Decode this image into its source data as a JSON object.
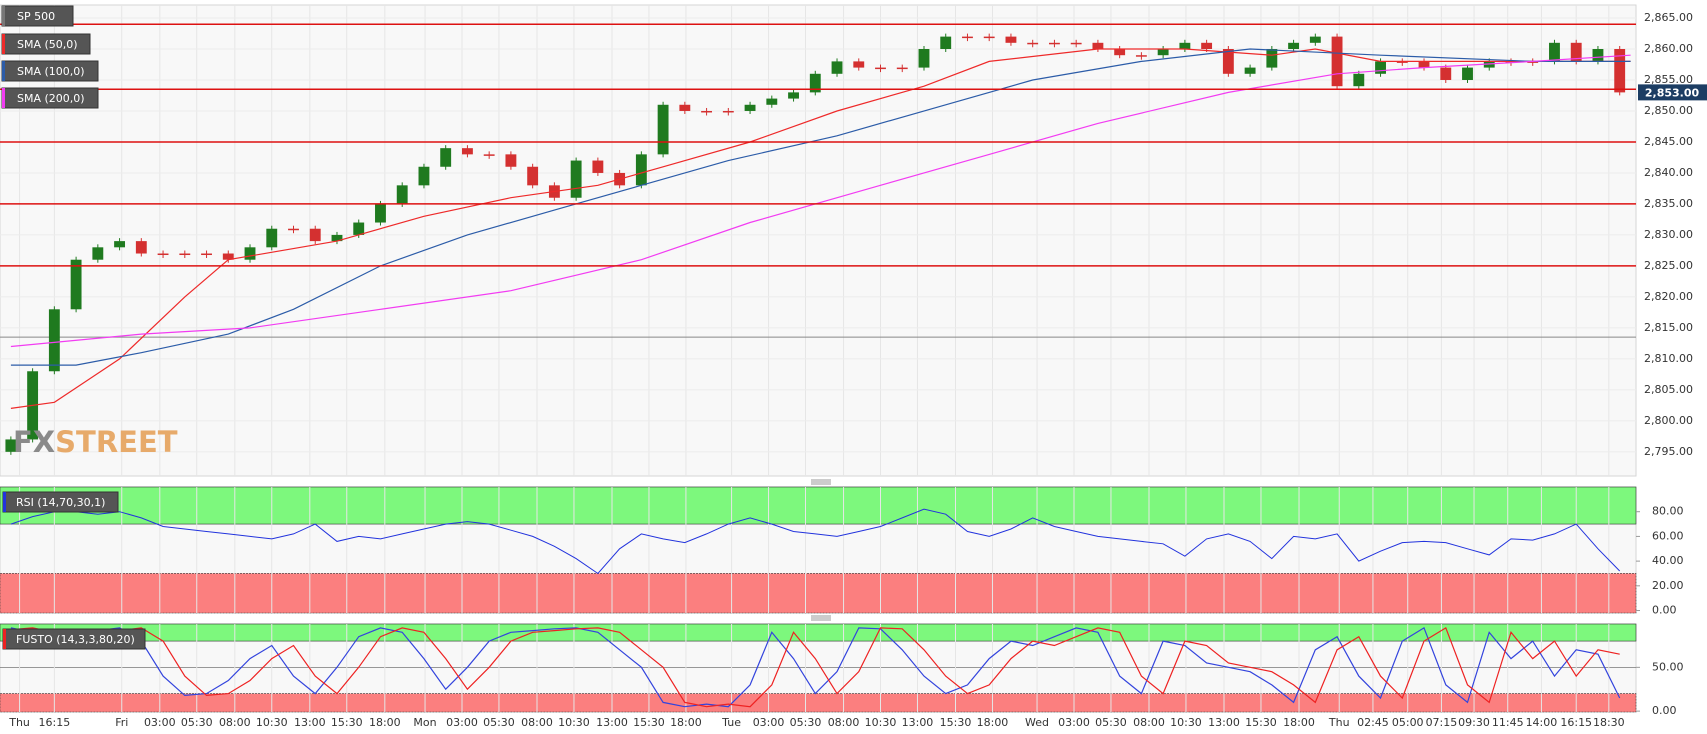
{
  "chart_data": [
    {
      "type": "candlestick",
      "title": "SP 500",
      "open": [
        2795,
        2797,
        2808,
        2818,
        2826,
        2828,
        2829,
        2827,
        2827,
        2827,
        2827,
        2826,
        2828,
        2831,
        2831,
        2829,
        2830,
        2832,
        2835,
        2838,
        2841,
        2844,
        2843,
        2843,
        2841,
        2838,
        2836,
        2842,
        2840,
        2838,
        2843,
        2851,
        2850,
        2850,
        2850,
        2851,
        2852,
        2853,
        2856,
        2858,
        2857,
        2857,
        2857,
        2860,
        2862,
        2862,
        2862,
        2861,
        2861,
        2861,
        2861,
        2860,
        2859,
        2859,
        2860,
        2861,
        2860,
        2856,
        2857,
        2860,
        2861,
        2862,
        2854,
        2856,
        2858,
        2858,
        2857,
        2855,
        2857,
        2858,
        2858,
        2858,
        2861,
        2858,
        2860
      ],
      "close": [
        2797,
        2808,
        2818,
        2826,
        2828,
        2829,
        2827,
        2827,
        2827,
        2827,
        2826,
        2828,
        2831,
        2831,
        2829,
        2830,
        2832,
        2835,
        2838,
        2841,
        2844,
        2843,
        2843,
        2841,
        2838,
        2836,
        2842,
        2840,
        2838,
        2843,
        2851,
        2850,
        2850,
        2850,
        2851,
        2852,
        2853,
        2856,
        2858,
        2857,
        2857,
        2857,
        2860,
        2862,
        2862,
        2862,
        2861,
        2861,
        2861,
        2861,
        2860,
        2859,
        2859,
        2860,
        2861,
        2860,
        2856,
        2857,
        2860,
        2861,
        2862,
        2854,
        2856,
        2858,
        2858,
        2857,
        2855,
        2857,
        2858,
        2858,
        2858,
        2861,
        2858,
        2860,
        2853
      ],
      "up_color": "#1f7a1f",
      "down_color": "#d43030",
      "series": [
        {
          "name": "SMA (50,0)",
          "color": "#ee2a2a",
          "x": [
            0,
            2,
            5,
            8,
            10,
            15,
            19,
            23,
            27,
            30,
            34,
            38,
            42,
            45,
            50,
            54,
            58,
            60,
            63,
            70,
            74.5
          ],
          "values": [
            2802,
            2803,
            2810,
            2820,
            2826,
            2829,
            2833,
            2836,
            2838,
            2841,
            2845,
            2850,
            2854,
            2858,
            2860,
            2860,
            2859,
            2860,
            2858,
            2858,
            2858
          ]
        },
        {
          "name": "SMA (100,0)",
          "color": "#2c5ca8",
          "x": [
            0,
            3,
            6,
            10,
            13,
            17,
            21,
            25,
            29,
            33,
            38,
            43,
            47,
            52,
            57,
            63,
            70,
            74.5
          ],
          "values": [
            2809,
            2809,
            2811,
            2814,
            2818,
            2825,
            2830,
            2834,
            2838,
            2842,
            2846,
            2851,
            2855,
            2858,
            2860,
            2859,
            2858,
            2858
          ]
        },
        {
          "name": "SMA (200,0)",
          "color": "#f23cf2",
          "x": [
            0,
            6,
            11,
            17,
            23,
            29,
            34,
            40,
            45,
            50,
            56,
            61,
            65,
            70,
            74.5
          ],
          "values": [
            2812,
            2814,
            2815,
            2818,
            2821,
            2826,
            2832,
            2838,
            2843,
            2848,
            2853,
            2856,
            2857,
            2858,
            2859
          ]
        }
      ],
      "horizontal_lines": {
        "color": "#dd1111",
        "values": [
          2864,
          2853.5,
          2845,
          2835,
          2825
        ]
      },
      "reference_line": 2813.5,
      "last_price": {
        "value": 2853,
        "label": "2,853.00"
      },
      "watermark": [
        "FX",
        "STREET"
      ],
      "xlim": [
        -0.5,
        74.75
      ],
      "xticks": [
        {
          "value": 0.4,
          "label": "Thu"
        },
        {
          "value": 2.0,
          "label": "16:15"
        },
        {
          "value": 5.1,
          "label": "Fri"
        },
        {
          "value": 6.85,
          "label": "03:00"
        },
        {
          "value": 8.55,
          "label": "05:30"
        },
        {
          "value": 10.3,
          "label": "08:00"
        },
        {
          "value": 12.0,
          "label": "10:30"
        },
        {
          "value": 13.75,
          "label": "13:00"
        },
        {
          "value": 15.45,
          "label": "15:30"
        },
        {
          "value": 17.2,
          "label": "18:00"
        },
        {
          "value": 19.05,
          "label": "Mon"
        },
        {
          "value": 20.75,
          "label": "03:00"
        },
        {
          "value": 22.45,
          "label": "05:30"
        },
        {
          "value": 24.2,
          "label": "08:00"
        },
        {
          "value": 25.9,
          "label": "10:30"
        },
        {
          "value": 27.65,
          "label": "13:00"
        },
        {
          "value": 29.35,
          "label": "15:30"
        },
        {
          "value": 31.05,
          "label": "18:00"
        },
        {
          "value": 33.15,
          "label": "Tue"
        },
        {
          "value": 34.85,
          "label": "03:00"
        },
        {
          "value": 36.55,
          "label": "05:30"
        },
        {
          "value": 38.3,
          "label": "08:00"
        },
        {
          "value": 40.0,
          "label": "10:30"
        },
        {
          "value": 41.7,
          "label": "13:00"
        },
        {
          "value": 43.45,
          "label": "15:30"
        },
        {
          "value": 45.15,
          "label": "18:00"
        },
        {
          "value": 47.2,
          "label": "Wed"
        },
        {
          "value": 48.9,
          "label": "03:00"
        },
        {
          "value": 50.6,
          "label": "05:30"
        },
        {
          "value": 52.35,
          "label": "08:00"
        },
        {
          "value": 54.05,
          "label": "10:30"
        },
        {
          "value": 55.8,
          "label": "13:00"
        },
        {
          "value": 57.5,
          "label": "15:30"
        },
        {
          "value": 59.25,
          "label": "18:00"
        },
        {
          "value": 61.1,
          "label": "Thu"
        },
        {
          "value": 62.65,
          "label": "02:45"
        },
        {
          "value": 64.25,
          "label": "05:00"
        },
        {
          "value": 65.8,
          "label": "07:15"
        },
        {
          "value": 67.3,
          "label": "09:30"
        },
        {
          "value": 68.85,
          "label": "11:45"
        },
        {
          "value": 70.4,
          "label": "14:00"
        },
        {
          "value": 72.0,
          "label": "16:15"
        },
        {
          "value": 73.5,
          "label": "18:30"
        }
      ],
      "ylim": [
        2791.1,
        2867.1
      ],
      "yticks": [
        {
          "value": 2795,
          "label": "2,795.00"
        },
        {
          "value": 2800,
          "label": "2,800.00"
        },
        {
          "value": 2805,
          "label": "2,805.00"
        },
        {
          "value": 2810,
          "label": "2,810.00"
        },
        {
          "value": 2815,
          "label": "2,815.00"
        },
        {
          "value": 2820,
          "label": "2,820.00"
        },
        {
          "value": 2825,
          "label": "2,825.00"
        },
        {
          "value": 2830,
          "label": "2,830.00"
        },
        {
          "value": 2835,
          "label": "2,835.00"
        },
        {
          "value": 2840,
          "label": "2,840.00"
        },
        {
          "value": 2845,
          "label": "2,845.00"
        },
        {
          "value": 2850,
          "label": "2,850.00"
        },
        {
          "value": 2855,
          "label": "2,855.00"
        },
        {
          "value": 2860,
          "label": "2,860.00"
        },
        {
          "value": 2865,
          "label": "2,865.00"
        }
      ]
    },
    {
      "type": "line",
      "title": "RSI (14,70,30,1)",
      "color": "#2233dd",
      "values": [
        70,
        76,
        80,
        80,
        78,
        80,
        75,
        68,
        66,
        64,
        62,
        60,
        58,
        62,
        70,
        56,
        60,
        58,
        62,
        66,
        70,
        72,
        70,
        65,
        60,
        52,
        42,
        30,
        50,
        62,
        58,
        55,
        62,
        70,
        75,
        70,
        64,
        62,
        60,
        64,
        68,
        75,
        82,
        78,
        64,
        60,
        66,
        75,
        68,
        64,
        60,
        58,
        56,
        54,
        44,
        58,
        62,
        56,
        42,
        60,
        58,
        62,
        40,
        48,
        55,
        56,
        55,
        50,
        45,
        58,
        57,
        62,
        70,
        50,
        32
      ],
      "upper_level": 70,
      "lower_level": 30,
      "upper_color": "#7df87d",
      "lower_color": "#fb7f7f",
      "xlim": [
        -0.5,
        74.75
      ],
      "ylim": [
        -2,
        100
      ],
      "yticks": [
        {
          "value": 0,
          "label": "0.00"
        },
        {
          "value": 20,
          "label": "20.00"
        },
        {
          "value": 40,
          "label": "40.00"
        },
        {
          "value": 60,
          "label": "60.00"
        },
        {
          "value": 80,
          "label": "80.00"
        }
      ]
    },
    {
      "type": "line",
      "title": "FUSTO (14,3,3,80,20)",
      "series": [
        {
          "color": "#3344dd",
          "values": [
            95,
            90,
            85,
            88,
            92,
            95,
            80,
            40,
            18,
            20,
            35,
            60,
            75,
            40,
            20,
            50,
            85,
            95,
            90,
            60,
            25,
            50,
            80,
            90,
            92,
            94,
            95,
            90,
            70,
            50,
            10,
            5,
            8,
            5,
            30,
            90,
            60,
            20,
            45,
            95,
            94,
            70,
            40,
            20,
            30,
            60,
            80,
            75,
            85,
            95,
            90,
            40,
            20,
            80,
            75,
            55,
            50,
            45,
            30,
            10,
            70,
            85,
            40,
            15,
            80,
            95,
            30,
            10,
            90,
            60,
            80,
            40,
            70,
            65,
            15
          ]
        },
        {
          "color": "#ee2222",
          "values": [
            93,
            95,
            90,
            85,
            88,
            92,
            95,
            80,
            40,
            18,
            20,
            35,
            60,
            75,
            40,
            20,
            50,
            85,
            95,
            90,
            60,
            25,
            50,
            80,
            90,
            92,
            94,
            95,
            90,
            70,
            50,
            10,
            5,
            8,
            5,
            30,
            90,
            60,
            20,
            45,
            95,
            94,
            70,
            40,
            20,
            30,
            60,
            80,
            75,
            85,
            95,
            90,
            40,
            20,
            80,
            75,
            55,
            50,
            45,
            30,
            10,
            70,
            85,
            40,
            15,
            80,
            95,
            30,
            10,
            90,
            60,
            80,
            40,
            70,
            65
          ]
        }
      ],
      "upper_level": 80,
      "lower_level": 20,
      "middle_level": 50,
      "upper_color": "#7df87d",
      "lower_color": "#fb7f7f",
      "xlim": [
        -0.5,
        74.75
      ],
      "ylim": [
        -1,
        99.5
      ],
      "yticks": [
        {
          "value": 0,
          "label": "0.00"
        },
        {
          "value": 50,
          "label": "50.00"
        }
      ]
    }
  ]
}
